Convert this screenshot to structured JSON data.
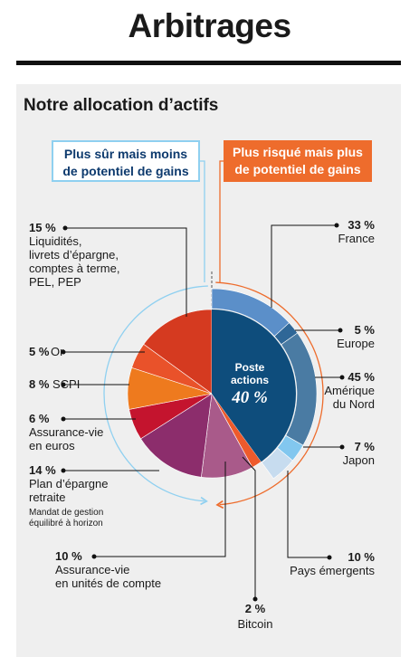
{
  "header": {
    "title": "Arbitrages"
  },
  "panel": {
    "subtitle": "Notre allocation d’actifs",
    "safe_box": [
      "Plus sûr mais moins",
      "de potentiel de gains"
    ],
    "risk_box": [
      "Plus risqué mais plus",
      "de potentiel de gains"
    ]
  },
  "chart_data": {
    "type": "pie",
    "title": "Notre allocation d’actifs",
    "unit": "%",
    "segments": [
      {
        "label": "Liquidités, livrets d’épargne, comptes à terme, PEL, PEP",
        "label_lines": [
          "Liquidités,",
          "livrets d’épargne,",
          "comptes à terme,",
          "PEL, PEP"
        ],
        "value": 15,
        "pct_text": "15 %",
        "color": "#d53a20"
      },
      {
        "label": "Or",
        "label_lines": [
          "Or"
        ],
        "value": 5,
        "pct_text": "5 %",
        "color": "#e9522a"
      },
      {
        "label": "SCPI",
        "label_lines": [
          "SCPI"
        ],
        "value": 8,
        "pct_text": "8 %",
        "color": "#ee7a1e"
      },
      {
        "label": "Assurance-vie en euros",
        "label_lines": [
          "Assurance-vie",
          "en euros"
        ],
        "value": 6,
        "pct_text": "6 %",
        "color": "#c4142e"
      },
      {
        "label": "Plan d’épargne retraite",
        "label_lines": [
          "Plan d’épargne",
          "retraite"
        ],
        "note_lines": [
          "Mandat de gestion",
          "équilibré à horizon"
        ],
        "value": 14,
        "pct_text": "14 %",
        "color": "#8c2d6c"
      },
      {
        "label": "Assurance-vie en unités de compte",
        "label_lines": [
          "Assurance-vie",
          "en unités de compte"
        ],
        "value": 10,
        "pct_text": "10 %",
        "color": "#a95a8a"
      },
      {
        "label": "Bitcoin",
        "label_lines": [
          "Bitcoin"
        ],
        "value": 2,
        "pct_text": "2 %",
        "color": "#ee5a2c"
      },
      {
        "label": "Poste actions",
        "center_lines": [
          "Poste",
          "actions"
        ],
        "value": 40,
        "pct_text": "40 %",
        "color": "#0e4d7c"
      }
    ],
    "equity_breakdown": [
      {
        "label": "France",
        "label_lines": [
          "France"
        ],
        "value": 33,
        "pct_text": "33 %",
        "color": "#5b8fc9"
      },
      {
        "label": "Europe",
        "label_lines": [
          "Europe"
        ],
        "value": 5,
        "pct_text": "5 %",
        "color": "#2f6797"
      },
      {
        "label": "Amérique du Nord",
        "label_lines": [
          "Amérique",
          "du Nord"
        ],
        "value": 45,
        "pct_text": "45 %",
        "color": "#4a7ba3"
      },
      {
        "label": "Japon",
        "label_lines": [
          "Japon"
        ],
        "value": 7,
        "pct_text": "7 %",
        "color": "#82c7ef"
      },
      {
        "label": "Pays émergents",
        "label_lines": [
          "Pays émergents"
        ],
        "value": 10,
        "pct_text": "10 %",
        "color": "#c7dcef"
      }
    ]
  }
}
